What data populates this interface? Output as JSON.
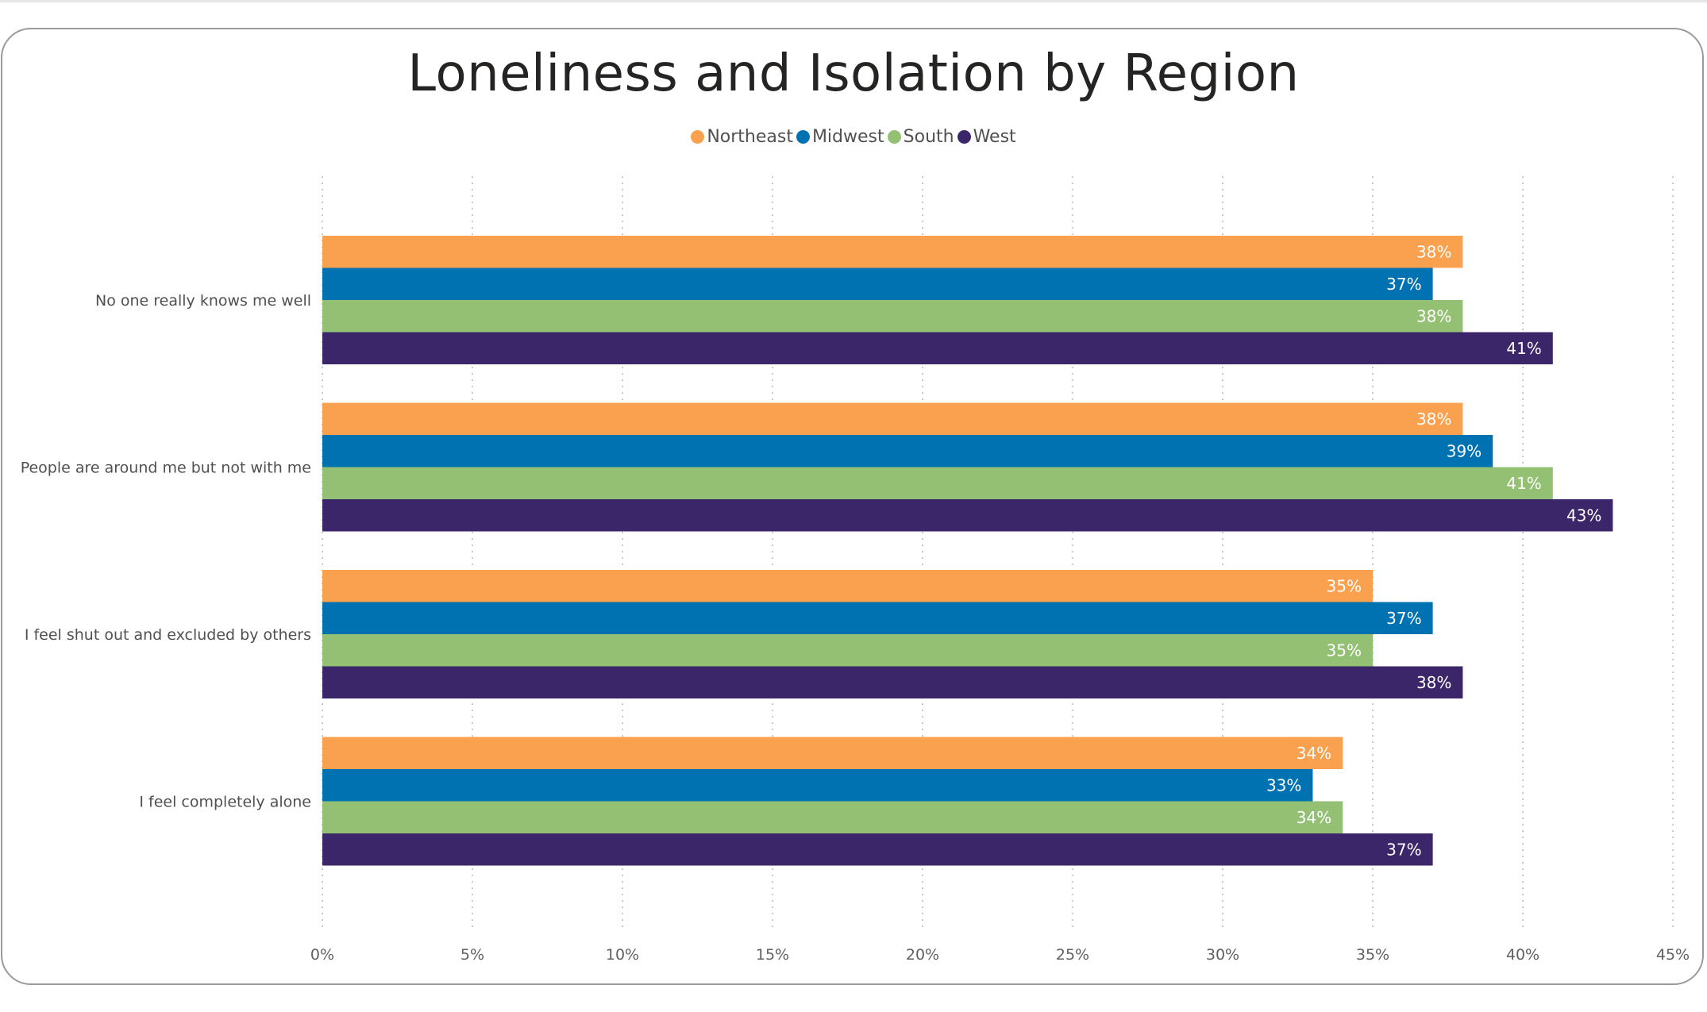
{
  "chart_data": {
    "type": "bar",
    "orientation": "horizontal",
    "title": "Loneliness and Isolation by Region",
    "categories": [
      "No one really knows me well",
      "People are around me but not with me",
      "I feel shut out and excluded by others",
      "I feel completely alone"
    ],
    "series": [
      {
        "name": "Northeast",
        "color": "#FAA14F",
        "values": [
          38,
          38,
          35,
          34
        ]
      },
      {
        "name": "Midwest",
        "color": "#0072B2",
        "values": [
          37,
          39,
          37,
          33
        ]
      },
      {
        "name": "South",
        "color": "#93C073",
        "values": [
          38,
          41,
          35,
          34
        ]
      },
      {
        "name": "West",
        "color": "#3B2669",
        "values": [
          41,
          43,
          38,
          37
        ]
      }
    ],
    "xlim": [
      0,
      45
    ],
    "xticks": [
      "0%",
      "5%",
      "10%",
      "15%",
      "20%",
      "25%",
      "30%",
      "35%",
      "40%",
      "45%"
    ],
    "value_suffix": "%",
    "grid": true,
    "legend_position": "top-center"
  }
}
